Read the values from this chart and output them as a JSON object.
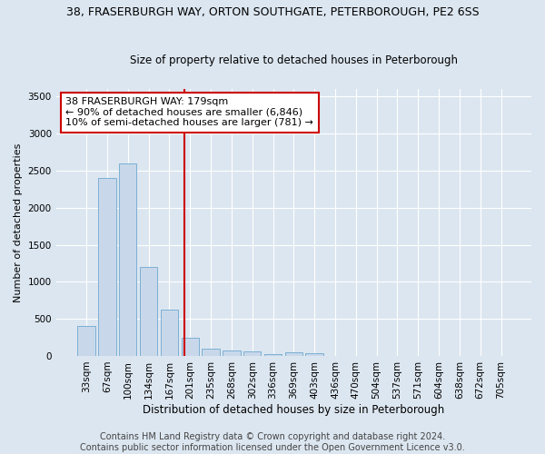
{
  "title_line1": "38, FRASERBURGH WAY, ORTON SOUTHGATE, PETERBOROUGH, PE2 6SS",
  "title_line2": "Size of property relative to detached houses in Peterborough",
  "xlabel": "Distribution of detached houses by size in Peterborough",
  "ylabel": "Number of detached properties",
  "footer_line1": "Contains HM Land Registry data © Crown copyright and database right 2024.",
  "footer_line2": "Contains public sector information licensed under the Open Government Licence v3.0.",
  "categories": [
    "33sqm",
    "67sqm",
    "100sqm",
    "134sqm",
    "167sqm",
    "201sqm",
    "235sqm",
    "268sqm",
    "302sqm",
    "336sqm",
    "369sqm",
    "403sqm",
    "436sqm",
    "470sqm",
    "504sqm",
    "537sqm",
    "571sqm",
    "604sqm",
    "638sqm",
    "672sqm",
    "705sqm"
  ],
  "values": [
    400,
    2400,
    2600,
    1200,
    620,
    250,
    100,
    70,
    60,
    30,
    50,
    40,
    0,
    0,
    0,
    0,
    0,
    0,
    0,
    0,
    0
  ],
  "bar_color": "#c8d8ea",
  "bar_edge_color": "#7bafd4",
  "vline_pos": 4.72,
  "vline_color": "#cc0000",
  "annotation_text": "38 FRASERBURGH WAY: 179sqm\n← 90% of detached houses are smaller (6,846)\n10% of semi-detached houses are larger (781) →",
  "annotation_box_color": "#ffffff",
  "annotation_box_edge": "#cc0000",
  "ylim": [
    0,
    3600
  ],
  "yticks": [
    0,
    500,
    1000,
    1500,
    2000,
    2500,
    3000,
    3500
  ],
  "background_color": "#dce6f0",
  "grid_color": "#ffffff",
  "title1_fontsize": 9,
  "title2_fontsize": 8.5,
  "xlabel_fontsize": 8.5,
  "ylabel_fontsize": 8,
  "tick_fontsize": 7.5,
  "footer_fontsize": 7,
  "annot_fontsize": 8
}
